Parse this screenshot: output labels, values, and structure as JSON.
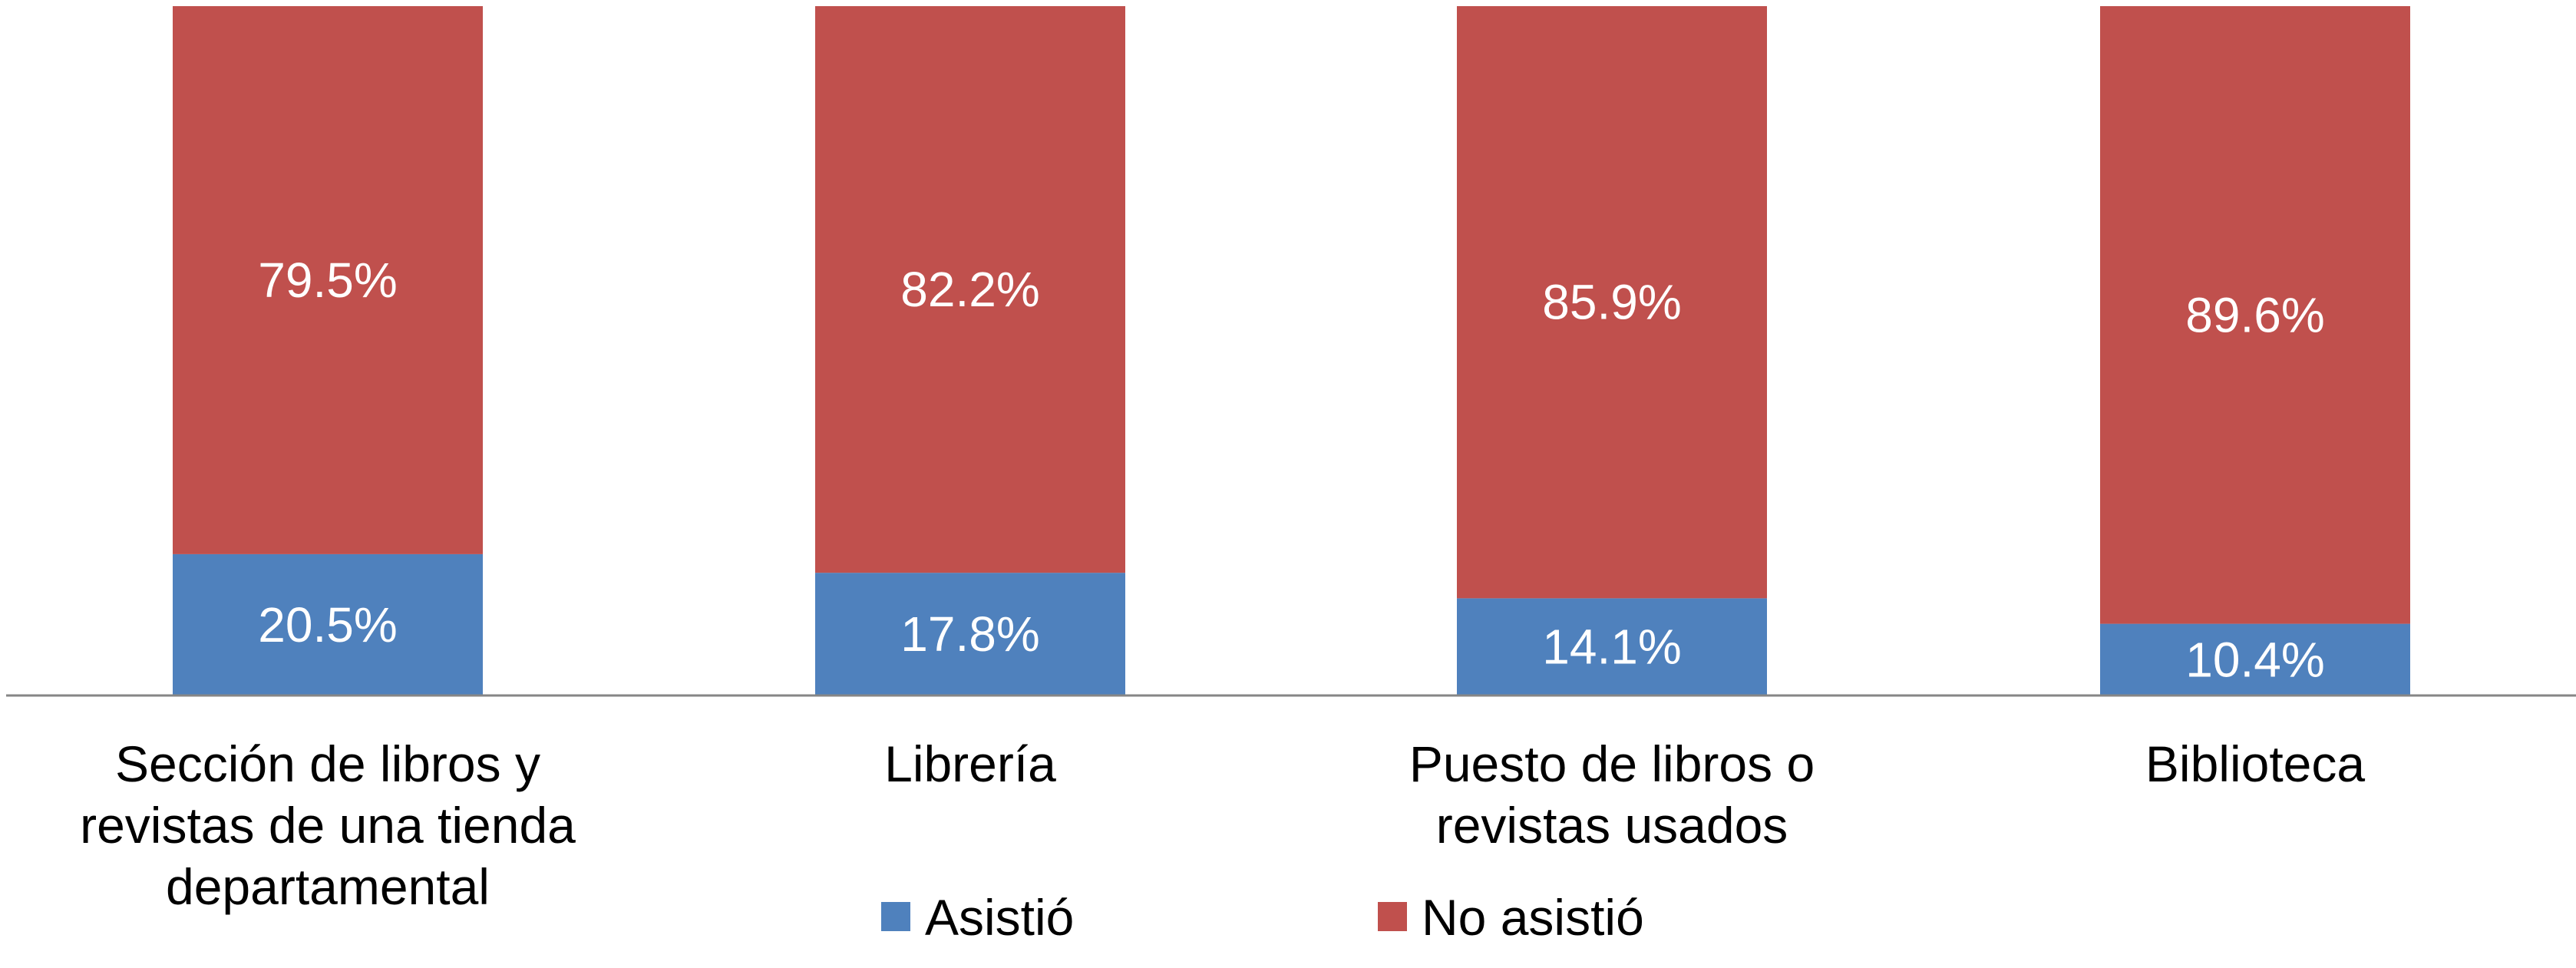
{
  "chart_data": {
    "type": "bar",
    "stacked": true,
    "categories": [
      "Sección de libros y revistas de una tienda departamental",
      "Librería",
      "Puesto de libros o revistas usados",
      "Biblioteca"
    ],
    "category_lines": [
      [
        "Sección de libros y",
        "revistas de una tienda",
        "departamental"
      ],
      [
        "Librería"
      ],
      [
        "Puesto de libros o",
        "revistas usados"
      ],
      [
        "Biblioteca"
      ]
    ],
    "series": [
      {
        "name": "Asistió",
        "color": "#4F81BD",
        "values": [
          20.5,
          17.8,
          14.1,
          10.4
        ],
        "labels": [
          "20.5%",
          "17.8%",
          "14.1%",
          "10.4%"
        ]
      },
      {
        "name": "No asistió",
        "color": "#C0504D",
        "values": [
          79.5,
          82.2,
          85.9,
          89.6
        ],
        "labels": [
          "79.5%",
          "82.2%",
          "85.9%",
          "89.6%"
        ]
      }
    ],
    "ylim": [
      0,
      100
    ],
    "grid": false,
    "legend": "bottom"
  }
}
